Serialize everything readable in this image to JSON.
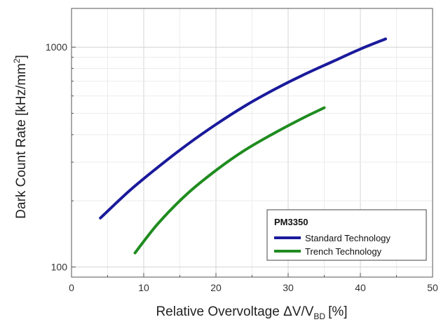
{
  "chart_data": {
    "type": "line",
    "xlabel": "Relative Overvoltage ΔV/V",
    "xlabel_sub": "BD",
    "xlabel_unit": "[%]",
    "ylabel": "Dark Count Rate [kHz/mm",
    "ylabel_sup": "2",
    "ylabel_end": "]",
    "xlim": [
      0,
      50
    ],
    "ylim": [
      90,
      1500
    ],
    "yscale": "log",
    "grid": true,
    "x_ticks": [
      "0",
      "10",
      "20",
      "30",
      "40",
      "50"
    ],
    "y_ticks": [
      "100",
      "1000"
    ],
    "legend": {
      "title": "PM3350",
      "placement": "bottom-right"
    },
    "series": [
      {
        "name": "Standard Technology",
        "color": "#1a1a9c",
        "x": [
          4,
          8,
          12,
          16,
          20,
          24,
          28,
          32,
          36,
          40,
          43.5
        ],
        "y": [
          167,
          222,
          285,
          360,
          445,
          540,
          640,
          745,
          855,
          980,
          1090
        ]
      },
      {
        "name": "Trench Technology",
        "color": "#1f8c1f",
        "x": [
          8.8,
          12,
          16,
          20,
          24,
          28,
          32,
          35
        ],
        "y": [
          116,
          158,
          215,
          275,
          340,
          405,
          475,
          530
        ]
      }
    ]
  }
}
